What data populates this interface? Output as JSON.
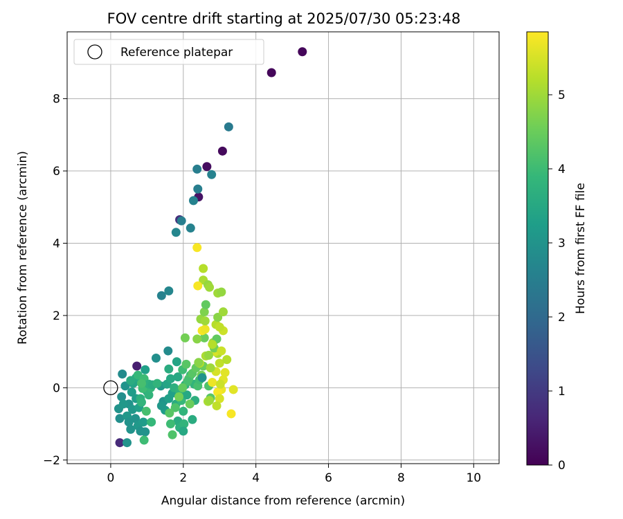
{
  "chart_data": {
    "type": "scatter",
    "title": "FOV centre drift starting at 2025/07/30 05:23:48",
    "xlabel": "Angular distance from reference (arcmin)",
    "ylabel": "Rotation from reference (arcmin)",
    "xlim": [
      -1.2,
      10.7
    ],
    "ylim": [
      -2.1,
      9.85
    ],
    "xticks": [
      0,
      2,
      4,
      6,
      8,
      10
    ],
    "yticks": [
      -2,
      0,
      2,
      4,
      6,
      8
    ],
    "grid": true,
    "legend": {
      "placement": "top-left",
      "label": "Reference platepar"
    },
    "reference_point": {
      "x": 0,
      "y": 0
    },
    "colorbar": {
      "label": "Hours from first FF file",
      "range": [
        0,
        5.85
      ],
      "ticks": [
        0,
        1,
        2,
        3,
        4,
        5
      ],
      "colormap": "viridis"
    },
    "colormap_stops": [
      "#440154",
      "#482878",
      "#3e4a89",
      "#31688e",
      "#26828e",
      "#1f9e89",
      "#35b779",
      "#6ece58",
      "#b5de2b",
      "#fde725"
    ],
    "points": [
      {
        "x": 5.28,
        "y": 9.3,
        "h": 0.1
      },
      {
        "x": 4.43,
        "y": 8.72,
        "h": 0.1
      },
      {
        "x": 3.08,
        "y": 6.55,
        "h": 0.15
      },
      {
        "x": 2.65,
        "y": 6.12,
        "h": 0.2
      },
      {
        "x": 2.42,
        "y": 5.28,
        "h": 0.3
      },
      {
        "x": 1.9,
        "y": 4.65,
        "h": 0.8
      },
      {
        "x": 0.72,
        "y": 0.6,
        "h": 0.5
      },
      {
        "x": 0.25,
        "y": -1.52,
        "h": 0.7
      },
      {
        "x": 3.25,
        "y": 7.22,
        "h": 2.4
      },
      {
        "x": 2.38,
        "y": 6.05,
        "h": 2.5
      },
      {
        "x": 2.78,
        "y": 5.9,
        "h": 2.6
      },
      {
        "x": 2.4,
        "y": 5.5,
        "h": 2.5
      },
      {
        "x": 2.28,
        "y": 5.18,
        "h": 2.6
      },
      {
        "x": 1.95,
        "y": 4.62,
        "h": 2.5
      },
      {
        "x": 2.2,
        "y": 4.42,
        "h": 2.6
      },
      {
        "x": 1.8,
        "y": 4.3,
        "h": 2.7
      },
      {
        "x": 1.4,
        "y": 2.55,
        "h": 2.6
      },
      {
        "x": 1.6,
        "y": 2.68,
        "h": 2.7
      },
      {
        "x": 1.58,
        "y": 1.02,
        "h": 2.8
      },
      {
        "x": 1.25,
        "y": 0.82,
        "h": 2.9
      },
      {
        "x": 0.32,
        "y": 0.38,
        "h": 2.8
      },
      {
        "x": 0.4,
        "y": 0.05,
        "h": 3.0
      },
      {
        "x": 0.3,
        "y": -0.25,
        "h": 2.9
      },
      {
        "x": 0.22,
        "y": -0.58,
        "h": 3.0
      },
      {
        "x": 0.25,
        "y": -0.85,
        "h": 2.9
      },
      {
        "x": 0.45,
        "y": -1.52,
        "h": 3.0
      },
      {
        "x": 0.55,
        "y": -1.15,
        "h": 3.0
      },
      {
        "x": 0.45,
        "y": -0.78,
        "h": 3.1
      },
      {
        "x": 0.5,
        "y": -0.45,
        "h": 3.0
      },
      {
        "x": 0.58,
        "y": -0.12,
        "h": 3.2
      },
      {
        "x": 0.6,
        "y": -0.6,
        "h": 3.1
      },
      {
        "x": 0.68,
        "y": -0.85,
        "h": 3.0
      },
      {
        "x": 0.75,
        "y": -1.05,
        "h": 3.1
      },
      {
        "x": 0.82,
        "y": -1.2,
        "h": 3.0
      },
      {
        "x": 0.9,
        "y": -0.95,
        "h": 3.2
      },
      {
        "x": 0.95,
        "y": -1.22,
        "h": 3.0
      },
      {
        "x": 0.7,
        "y": -0.3,
        "h": 3.2
      },
      {
        "x": 0.78,
        "y": -0.55,
        "h": 3.3
      },
      {
        "x": 0.35,
        "y": -0.45,
        "h": 3.1
      },
      {
        "x": 0.5,
        "y": -0.95,
        "h": 3.0
      },
      {
        "x": 0.62,
        "y": 0.12,
        "h": 3.4
      },
      {
        "x": 0.7,
        "y": 0.28,
        "h": 3.5
      },
      {
        "x": 0.9,
        "y": 0.15,
        "h": 3.4
      },
      {
        "x": 1.0,
        "y": -0.1,
        "h": 3.6
      },
      {
        "x": 0.95,
        "y": 0.5,
        "h": 3.3
      },
      {
        "x": 0.82,
        "y": -0.3,
        "h": 3.7
      },
      {
        "x": 1.05,
        "y": -0.2,
        "h": 3.8
      },
      {
        "x": 1.1,
        "y": 0.0,
        "h": 3.9
      },
      {
        "x": 0.88,
        "y": -0.02,
        "h": 4.0
      },
      {
        "x": 0.75,
        "y": 0.35,
        "h": 3.9
      },
      {
        "x": 0.92,
        "y": 0.25,
        "h": 4.0
      },
      {
        "x": 1.05,
        "y": 0.1,
        "h": 3.7
      },
      {
        "x": 0.98,
        "y": -0.65,
        "h": 4.1
      },
      {
        "x": 1.12,
        "y": -0.95,
        "h": 3.9
      },
      {
        "x": 0.92,
        "y": -1.45,
        "h": 4.0
      },
      {
        "x": 0.85,
        "y": -0.4,
        "h": 3.8
      },
      {
        "x": 1.38,
        "y": 0.05,
        "h": 3.1
      },
      {
        "x": 1.45,
        "y": -0.38,
        "h": 3.0
      },
      {
        "x": 1.5,
        "y": -0.62,
        "h": 3.2
      },
      {
        "x": 1.4,
        "y": -0.5,
        "h": 3.1
      },
      {
        "x": 1.6,
        "y": -0.3,
        "h": 3.3
      },
      {
        "x": 1.55,
        "y": 0.1,
        "h": 3.4
      },
      {
        "x": 1.65,
        "y": 0.25,
        "h": 3.5
      },
      {
        "x": 1.7,
        "y": -0.15,
        "h": 3.3
      },
      {
        "x": 1.8,
        "y": -0.45,
        "h": 3.6
      },
      {
        "x": 1.75,
        "y": 0.0,
        "h": 3.7
      },
      {
        "x": 1.85,
        "y": 0.3,
        "h": 3.5
      },
      {
        "x": 1.9,
        "y": -0.1,
        "h": 3.8
      },
      {
        "x": 1.82,
        "y": 0.72,
        "h": 3.4
      },
      {
        "x": 1.6,
        "y": 0.52,
        "h": 3.6
      },
      {
        "x": 1.95,
        "y": -0.35,
        "h": 3.9
      },
      {
        "x": 1.98,
        "y": 0.5,
        "h": 4.0
      },
      {
        "x": 2.05,
        "y": 0.08,
        "h": 3.7
      },
      {
        "x": 2.1,
        "y": -0.2,
        "h": 3.5
      },
      {
        "x": 2.0,
        "y": -0.65,
        "h": 3.8
      },
      {
        "x": 1.85,
        "y": -0.92,
        "h": 3.6
      },
      {
        "x": 1.9,
        "y": -1.1,
        "h": 3.7
      },
      {
        "x": 2.02,
        "y": -1.0,
        "h": 3.8
      },
      {
        "x": 2.0,
        "y": -1.2,
        "h": 3.5
      },
      {
        "x": 1.65,
        "y": -1.0,
        "h": 4.0
      },
      {
        "x": 1.7,
        "y": -1.3,
        "h": 4.2
      },
      {
        "x": 2.25,
        "y": -0.88,
        "h": 3.6
      },
      {
        "x": 2.2,
        "y": 0.35,
        "h": 3.9
      },
      {
        "x": 2.3,
        "y": 0.1,
        "h": 3.8
      },
      {
        "x": 2.15,
        "y": 0.25,
        "h": 4.2
      },
      {
        "x": 2.25,
        "y": 0.4,
        "h": 4.3
      },
      {
        "x": 2.32,
        "y": -0.35,
        "h": 3.7
      },
      {
        "x": 2.4,
        "y": 0.05,
        "h": 4.1
      },
      {
        "x": 2.35,
        "y": 0.55,
        "h": 4.4
      },
      {
        "x": 2.45,
        "y": 0.22,
        "h": 4.0
      },
      {
        "x": 2.5,
        "y": 0.35,
        "h": 4.6
      },
      {
        "x": 2.55,
        "y": 0.6,
        "h": 4.5
      },
      {
        "x": 2.7,
        "y": 0.05,
        "h": 4.2
      },
      {
        "x": 2.75,
        "y": -0.28,
        "h": 4.3
      },
      {
        "x": 2.08,
        "y": 0.65,
        "h": 4.3
      },
      {
        "x": 2.12,
        "y": 0.18,
        "h": 4.1
      },
      {
        "x": 1.98,
        "y": 0.0,
        "h": 4.4
      },
      {
        "x": 2.18,
        "y": -0.45,
        "h": 4.5
      },
      {
        "x": 1.88,
        "y": -0.25,
        "h": 4.6
      },
      {
        "x": 1.78,
        "y": -0.55,
        "h": 4.2
      },
      {
        "x": 1.62,
        "y": -0.7,
        "h": 4.3
      },
      {
        "x": 2.52,
        "y": 0.28,
        "h": 3.0
      },
      {
        "x": 2.58,
        "y": 1.38,
        "h": 4.5
      },
      {
        "x": 2.82,
        "y": 1.25,
        "h": 4.9
      },
      {
        "x": 2.95,
        "y": 0.95,
        "h": 5.1
      },
      {
        "x": 3.0,
        "y": 0.68,
        "h": 5.3
      },
      {
        "x": 2.9,
        "y": 0.45,
        "h": 5.5
      },
      {
        "x": 3.1,
        "y": 0.22,
        "h": 5.6
      },
      {
        "x": 3.05,
        "y": -0.05,
        "h": 5.7
      },
      {
        "x": 2.95,
        "y": -0.12,
        "h": 5.8
      },
      {
        "x": 3.15,
        "y": 0.42,
        "h": 5.6
      },
      {
        "x": 3.2,
        "y": 0.78,
        "h": 5.2
      },
      {
        "x": 3.1,
        "y": 1.58,
        "h": 5.4
      },
      {
        "x": 2.88,
        "y": 1.0,
        "h": 5.5
      },
      {
        "x": 2.8,
        "y": 0.15,
        "h": 5.7
      },
      {
        "x": 3.0,
        "y": -0.3,
        "h": 5.5
      },
      {
        "x": 2.92,
        "y": -0.5,
        "h": 5.3
      },
      {
        "x": 3.32,
        "y": -0.72,
        "h": 5.8
      },
      {
        "x": 3.38,
        "y": -0.05,
        "h": 5.6
      },
      {
        "x": 3.02,
        "y": 0.1,
        "h": 5.4
      },
      {
        "x": 2.75,
        "y": 0.55,
        "h": 5.0
      },
      {
        "x": 2.62,
        "y": 0.88,
        "h": 5.1
      },
      {
        "x": 2.7,
        "y": 0.9,
        "h": 4.9
      },
      {
        "x": 2.45,
        "y": 0.68,
        "h": 5.2
      },
      {
        "x": 2.52,
        "y": 1.58,
        "h": 5.8
      },
      {
        "x": 2.6,
        "y": 1.62,
        "h": 5.7
      },
      {
        "x": 2.68,
        "y": -0.38,
        "h": 5.1
      },
      {
        "x": 2.48,
        "y": 1.9,
        "h": 4.9
      },
      {
        "x": 2.58,
        "y": 2.1,
        "h": 4.7
      },
      {
        "x": 2.6,
        "y": 1.85,
        "h": 5.0
      },
      {
        "x": 2.62,
        "y": 2.3,
        "h": 4.4
      },
      {
        "x": 2.85,
        "y": 1.1,
        "h": 4.6
      },
      {
        "x": 2.9,
        "y": 1.75,
        "h": 5.2
      },
      {
        "x": 2.95,
        "y": 1.95,
        "h": 4.8
      },
      {
        "x": 3.1,
        "y": 2.1,
        "h": 5.0
      },
      {
        "x": 3.0,
        "y": 1.68,
        "h": 5.3
      },
      {
        "x": 2.95,
        "y": 2.62,
        "h": 5.0
      },
      {
        "x": 3.05,
        "y": 2.65,
        "h": 4.9
      },
      {
        "x": 2.92,
        "y": 1.35,
        "h": 4.4
      },
      {
        "x": 3.05,
        "y": 1.02,
        "h": 5.4
      },
      {
        "x": 2.55,
        "y": 2.98,
        "h": 5.1
      },
      {
        "x": 2.68,
        "y": 2.85,
        "h": 4.9
      },
      {
        "x": 2.72,
        "y": 2.78,
        "h": 5.0
      },
      {
        "x": 2.4,
        "y": 2.82,
        "h": 5.8
      },
      {
        "x": 2.55,
        "y": 3.3,
        "h": 5.2
      },
      {
        "x": 2.38,
        "y": 3.88,
        "h": 5.8
      },
      {
        "x": 2.05,
        "y": 1.38,
        "h": 4.6
      },
      {
        "x": 2.38,
        "y": 1.35,
        "h": 4.8
      },
      {
        "x": 2.8,
        "y": 1.2,
        "h": 5.2
      },
      {
        "x": 2.42,
        "y": 0.7,
        "h": 4.8
      },
      {
        "x": 2.72,
        "y": -0.35,
        "h": 5.0
      },
      {
        "x": 0.55,
        "y": 0.2,
        "h": 3.6
      },
      {
        "x": 0.85,
        "y": 0.12,
        "h": 4.1
      },
      {
        "x": 1.15,
        "y": 0.08,
        "h": 3.6
      },
      {
        "x": 1.28,
        "y": 0.12,
        "h": 3.8
      }
    ]
  }
}
